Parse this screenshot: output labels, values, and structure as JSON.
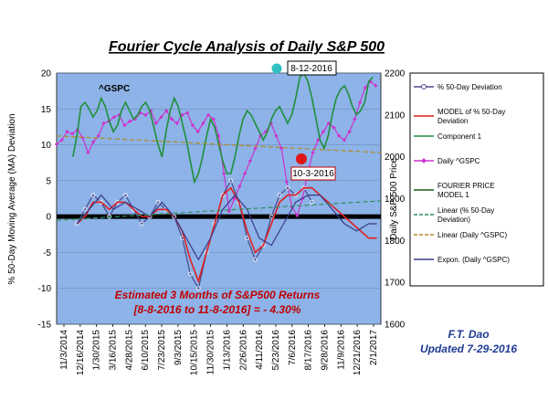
{
  "chart_data": {
    "type": "line",
    "title": "Fourier Cycle Analysis of Daily S&P 500",
    "series_label": "^GSPC",
    "ylabel_left": "% 50-Day Moving Average (MA)  Deviation",
    "ylabel_right": "Daily S&P 500  Price",
    "ylim_left": [
      -15,
      20
    ],
    "ylim_right": [
      1600,
      2200
    ],
    "y_ticks_left": [
      "20",
      "15",
      "10",
      "5",
      "0",
      "-5",
      "-10",
      "-15"
    ],
    "y_ticks_right": [
      "2200",
      "2100",
      "2000",
      "1900",
      "1800",
      "1700",
      "1600"
    ],
    "x_ticks": [
      "11/3/2014",
      "12/16/2014",
      "1/30/2015",
      "3/16/2015",
      "4/28/2015",
      "6/10/2015",
      "7/23/2015",
      "9/3/2015",
      "10/15/2015",
      "11/30/2015",
      "1/13/2016",
      "2/26/2016",
      "4/11/2016",
      "5/23/2016",
      "7/6/2016",
      "8/17/2016",
      "9/28/2016",
      "11/9/2016",
      "12/21/2016",
      "2/1/2017"
    ],
    "annotations": {
      "top_box": "8-12-2016",
      "red_box": "10-3-2016",
      "returns_line1": "Estimated 3 Months of S&P500 Returns",
      "returns_line2": "[8-8-2016 to 11-8-2016] = - 4.30%"
    },
    "credit": [
      "F.T. Dao",
      "Updated 7-29-2016"
    ],
    "legend": [
      {
        "label": [
          "% 50-Day Deviation"
        ],
        "color": "#4a4a8a",
        "marker": "circle"
      },
      {
        "label": [
          "MODEL  of  % 50-Day",
          "Deviation"
        ],
        "color": "#e02020"
      },
      {
        "label": [
          "Component 1"
        ],
        "color": "#1f8f3a"
      },
      {
        "label": [
          "Daily ^GSPC"
        ],
        "color": "#cc33cc",
        "marker": "diamond"
      },
      {
        "label": [
          "FOURIER  PRICE",
          "MODEL  1"
        ],
        "color": "#1a5e1a"
      },
      {
        "label": [
          "Linear (% 50-Day",
          "Deviation)"
        ],
        "color": "#2f8f5f",
        "dashed": true
      },
      {
        "label": [
          "Linear (Daily ^GSPC)"
        ],
        "color": "#b08a20",
        "dashed": true
      },
      {
        "label": [
          "Expon. (Daily ^GSPC)"
        ],
        "color": "#3a3a8a"
      }
    ],
    "series": [
      {
        "name": "Daily ^GSPC",
        "axis": "right",
        "color": "#cc33cc",
        "x": [
          0,
          2,
          4,
          6,
          8,
          10,
          12,
          14,
          16,
          18,
          20,
          22,
          24,
          26,
          28,
          30,
          32,
          34,
          36,
          38,
          40,
          42,
          44,
          46,
          48,
          50,
          52,
          54,
          56,
          58,
          60,
          62,
          64,
          66,
          68,
          70,
          72,
          74,
          76,
          78,
          80,
          82,
          84,
          86,
          88,
          90,
          92,
          94,
          96,
          98,
          100,
          102,
          104,
          106,
          108,
          110,
          112,
          114,
          116,
          118,
          120,
          122
        ],
        "y": [
          2030,
          2040,
          2060,
          2055,
          2065,
          2045,
          2010,
          2035,
          2050,
          2080,
          2085,
          2095,
          2100,
          2075,
          2085,
          2090,
          2105,
          2100,
          2110,
          2080,
          2095,
          2110,
          2090,
          2080,
          2100,
          2105,
          2075,
          2060,
          2080,
          2100,
          2090,
          2050,
          1960,
          1870,
          1900,
          1930,
          1960,
          1990,
          2020,
          2050,
          2060,
          2080,
          2050,
          2020,
          1940,
          1880,
          1860,
          1900,
          1960,
          2010,
          2040,
          2060,
          2080,
          2070,
          2050,
          2040,
          2060,
          2090,
          2130,
          2165,
          2180,
          2170
        ],
        "x_range": [
          0,
          124
        ]
      },
      {
        "name": "Component 1",
        "axis": "right",
        "color": "#1f8f3a",
        "x": [
          8,
          10,
          12,
          14,
          16,
          18,
          20,
          22,
          24,
          26,
          28,
          30,
          32,
          34,
          36,
          38,
          40,
          42,
          44,
          46,
          48,
          50,
          52,
          54,
          56,
          58,
          60,
          62,
          64,
          66,
          68,
          70,
          72,
          74,
          76,
          78,
          80,
          82,
          84,
          86,
          88,
          90,
          92,
          94,
          96,
          98,
          100,
          102,
          104,
          106,
          108,
          110,
          112,
          114,
          116,
          118,
          120,
          122,
          124,
          126,
          128,
          130,
          132,
          134,
          136,
          138,
          140,
          142,
          144,
          146,
          148,
          150,
          152,
          154,
          156
        ],
        "y": [
          2000,
          2050,
          2120,
          2130,
          2115,
          2095,
          2110,
          2140,
          2120,
          2085,
          2060,
          2075,
          2110,
          2130,
          2110,
          2090,
          2100,
          2120,
          2130,
          2110,
          2070,
          2030,
          2000,
          2060,
          2110,
          2140,
          2120,
          2080,
          2040,
          1990,
          1940,
          1960,
          2000,
          2050,
          2090,
          2070,
          2030,
          1990,
          1960,
          1960,
          2000,
          2050,
          2090,
          2110,
          2100,
          2080,
          2060,
          2040,
          2060,
          2090,
          2110,
          2120,
          2100,
          2080,
          2100,
          2140,
          2190,
          2200,
          2180,
          2140,
          2090,
          2040,
          2020,
          2050,
          2100,
          2140,
          2160,
          2170,
          2150,
          2120,
          2100,
          2110,
          2130,
          2180,
          2190
        ],
        "x_range": [
          0,
          160
        ]
      },
      {
        "name": "Linear (Daily ^GSPC)",
        "axis": "right",
        "color": "#b08a20",
        "x": [
          0,
          160
        ],
        "y": [
          2050,
          2010
        ]
      },
      {
        "name": "% 50-Day Deviation",
        "axis": "left",
        "color": "#4a4a8a",
        "x": [
          10,
          14,
          18,
          22,
          26,
          30,
          34,
          38,
          42,
          46,
          50,
          54,
          58,
          62,
          66,
          70,
          74,
          78,
          82,
          86,
          90,
          94,
          98,
          102,
          106,
          110,
          114,
          118,
          122,
          126
        ],
        "y": [
          -1,
          1,
          3,
          2,
          0,
          2,
          3,
          1,
          -1,
          0,
          2,
          1,
          0,
          -3,
          -8,
          -10,
          -5,
          -1,
          3,
          5,
          2,
          -3,
          -6,
          -4,
          0,
          3,
          4,
          3,
          4,
          2
        ],
        "x_range": [
          0,
          160
        ]
      },
      {
        "name": "MODEL of % 50-Day Deviation",
        "axis": "left",
        "color": "#e02020",
        "x": [
          10,
          14,
          18,
          22,
          26,
          30,
          34,
          38,
          42,
          46,
          50,
          54,
          58,
          62,
          66,
          70,
          74,
          78,
          82,
          86,
          90,
          94,
          98,
          102,
          106,
          110,
          114,
          118,
          122,
          126,
          130,
          134,
          138,
          142,
          146,
          150,
          154,
          158
        ],
        "y": [
          -1,
          0,
          2,
          2,
          1,
          2,
          2,
          1,
          0,
          0,
          1,
          1,
          0,
          -2,
          -6,
          -9,
          -5,
          -1,
          3,
          4,
          2,
          -2,
          -5,
          -4,
          -1,
          2,
          3,
          3,
          4,
          4,
          3,
          2,
          1,
          0,
          -1,
          -2,
          -3,
          -3
        ],
        "x_range": [
          0,
          160
        ]
      },
      {
        "name": "Expon. (Daily ^GSPC)",
        "axis": "left",
        "color": "#3a3a8a",
        "x": [
          10,
          16,
          22,
          28,
          34,
          40,
          46,
          52,
          58,
          64,
          70,
          76,
          82,
          88,
          94,
          100,
          106,
          112,
          118,
          124,
          130,
          136,
          142,
          148,
          154,
          158
        ],
        "y": [
          -1,
          1,
          3,
          1,
          2,
          1,
          0,
          2,
          0,
          -3,
          -6,
          -3,
          1,
          3,
          1,
          -3,
          -4,
          -1,
          2,
          3,
          3,
          1,
          -1,
          -2,
          -1,
          -1
        ],
        "x_range": [
          0,
          160
        ]
      },
      {
        "name": "Linear (% 50-Day Deviation)",
        "axis": "left",
        "color": "#2f8f5f",
        "x": [
          0,
          160
        ],
        "y": [
          -0.5,
          2.2
        ]
      }
    ]
  }
}
